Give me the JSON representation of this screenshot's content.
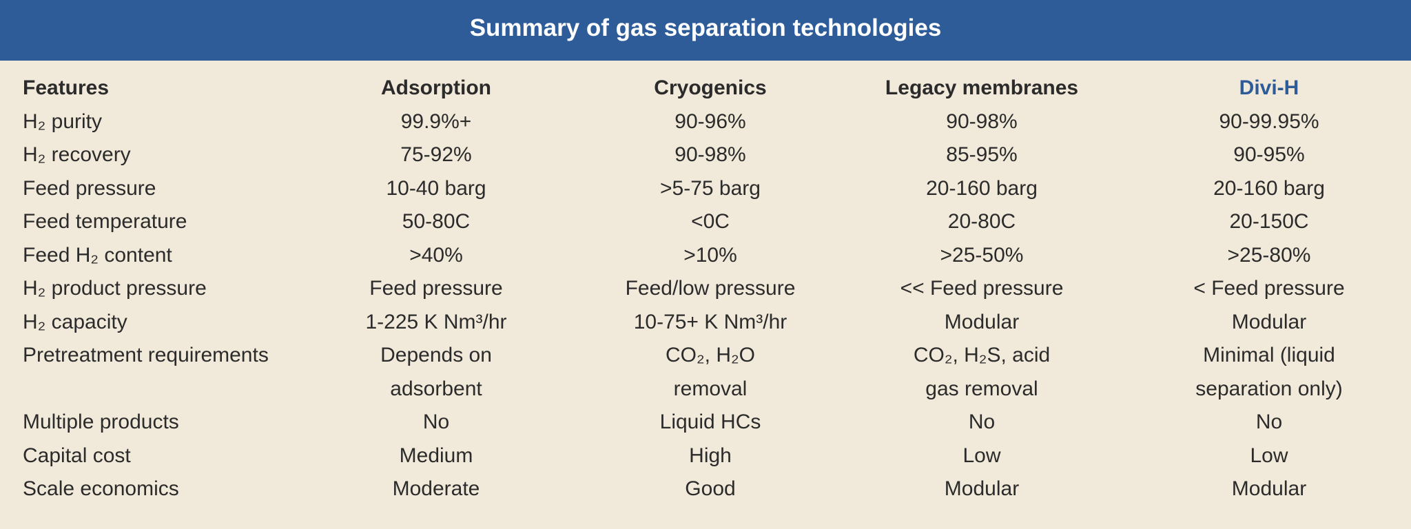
{
  "header": {
    "title": "Summary of gas separation technologies"
  },
  "table": {
    "columns": [
      "Features",
      "Adsorption",
      "Cryogenics",
      "Legacy membranes",
      "Divi-H"
    ],
    "rows": [
      [
        "H₂ purity",
        "99.9%+",
        "90-96%",
        "90-98%",
        "90-99.95%"
      ],
      [
        "H₂ recovery",
        "75-92%",
        "90-98%",
        "85-95%",
        "90-95%"
      ],
      [
        "Feed pressure",
        "10-40 barg",
        ">5-75 barg",
        "20-160 barg",
        "20-160 barg"
      ],
      [
        "Feed temperature",
        "50-80C",
        "<0C",
        "20-80C",
        "20-150C"
      ],
      [
        "Feed H₂ content",
        ">40%",
        ">10%",
        ">25-50%",
        ">25-80%"
      ],
      [
        "H₂ product pressure",
        "Feed pressure",
        "Feed/low pressure",
        "<< Feed pressure",
        "< Feed pressure"
      ],
      [
        "H₂ capacity",
        "1-225 K Nm³/hr",
        "10-75+ K Nm³/hr",
        "Modular",
        "Modular"
      ],
      [
        "Pretreatment requirements",
        [
          "Depends on",
          "adsorbent"
        ],
        [
          "CO₂, H₂O",
          "removal"
        ],
        [
          "CO₂, H₂S, acid",
          "gas removal"
        ],
        [
          "Minimal (liquid",
          "separation only)"
        ]
      ],
      [
        "Multiple products",
        "No",
        "Liquid HCs",
        "No",
        "No"
      ],
      [
        "Capital cost",
        "Medium",
        "High",
        "Low",
        "Low"
      ],
      [
        "Scale economics",
        "Moderate",
        "Good",
        "Modular",
        "Modular"
      ]
    ]
  }
}
